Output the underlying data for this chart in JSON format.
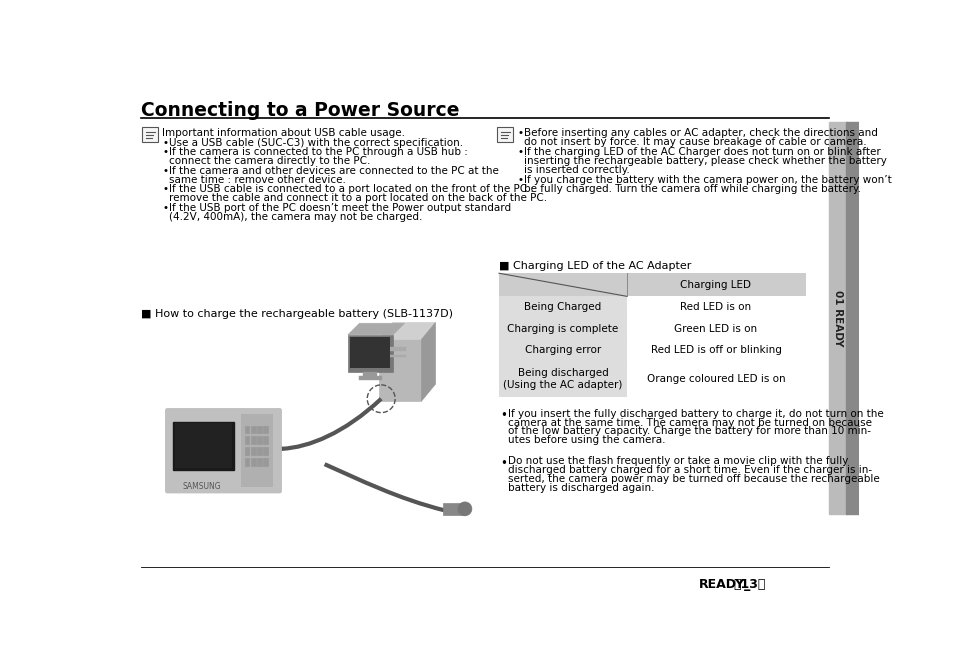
{
  "title": "Connecting to a Power Source",
  "bg_color": "#ffffff",
  "sidebar_color": "#bbbbbb",
  "sidebar_dark": "#888888",
  "sidebar_text": "01 READY",
  "footer_text": "READY_〓13〉",
  "left_note_header": "Important information about USB cable usage.",
  "left_bullets": [
    "Use a USB cable (SUC-C3) with the correct specification.",
    "If the camera is connected to the PC through a USB hub :\n   connect the camera directly to the PC.",
    "If the camera and other devices are connected to the PC at the\n   same time : remove other device.",
    "If the USB cable is connected to a port located on the front of the PC :\n   remove the cable and connect it to a port located on the back of the PC.",
    "If the USB port of the PC doesn’t meet the Power output standard\n   (4.2V, 400mA), the camera may not be charged."
  ],
  "right_bullets": [
    "Before inserting any cables or AC adapter, check the directions and\n   do not insert by force. It may cause breakage of cable or camera.",
    "If the charging LED of the AC Charger does not turn on or blink after\n   inserting the rechargeable battery, please check whether the battery\n   is inserted correctly.",
    "If you charge the battery with the camera power on, the battery won’t\n   be fully charged. Turn the camera off while charging the battery."
  ],
  "how_to_charge": "■ How to charge the rechargeable battery (SLB-1137D)",
  "charging_led_title": "■ Charging LED of the AC Adapter",
  "table_header_col2": "Charging LED",
  "table_rows": [
    [
      "Being Charged",
      "Red LED is on"
    ],
    [
      "Charging is complete",
      "Green LED is on"
    ],
    [
      "Charging error",
      "Red LED is off or blinking"
    ],
    [
      "Being discharged\n(Using the AC adapter)",
      "Orange coloured LED is on"
    ]
  ],
  "bottom_bullets": [
    [
      "If you insert the fully discharged battery to charge it, do not turn on the",
      "camera at the same time. The camera may not be turned on because",
      "of the low battery capacity. Charge the battery for more than 10 min-",
      "utes before using the camera."
    ],
    [
      "Do not use the flash frequently or take a movie clip with the fully",
      "discharged battery charged for a short time. Even if the charger is in-",
      "serted, the camera power may be turned off because the rechargeable",
      "battery is discharged again."
    ]
  ],
  "table_header_bg": "#cccccc",
  "table_left_col_bg": "#dddddd",
  "text_color": "#000000",
  "small_font": 7.5,
  "title_font": 13.5,
  "section_font": 8.5
}
